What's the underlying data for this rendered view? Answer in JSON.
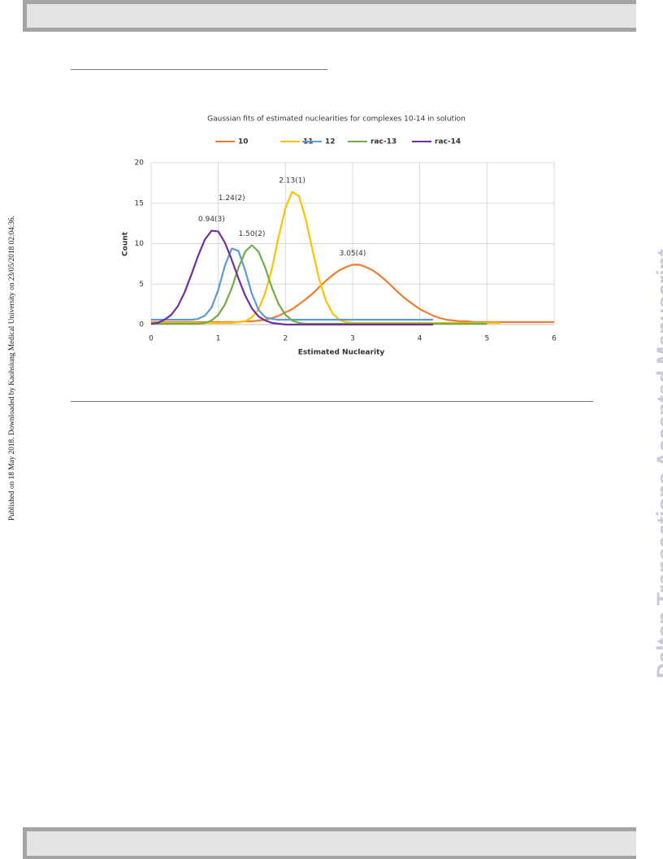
{
  "sidebar_text": "Published on 18 May 2018. Downloaded by Kaohsiung Medical University on 23/05/2018 02:04:36.",
  "watermark": "Dalton Transactions Accepted Manuscript",
  "chart_data": {
    "type": "line",
    "title": "Gaussian fits of estimated nuclearities for complexes 10-14 in solution",
    "x_label": "Estimated Nuclearity",
    "y_label": "Count",
    "xlim": [
      0,
      6
    ],
    "xticks": [
      0,
      1,
      2,
      3,
      4,
      5,
      6
    ],
    "ylim": [
      0,
      20
    ],
    "yticks": [
      0,
      5,
      10,
      15,
      20
    ],
    "grid": true,
    "legend": "top",
    "x": [
      0,
      0.1,
      0.2,
      0.3,
      0.4,
      0.5,
      0.6,
      0.7,
      0.8,
      0.9,
      1,
      1.1,
      1.2,
      1.3,
      1.4,
      1.5,
      1.6,
      1.7,
      1.8,
      1.9,
      2,
      2.1,
      2.2,
      2.3,
      2.4,
      2.5,
      2.6,
      2.7,
      2.8,
      2.9,
      3,
      3.1,
      3.2,
      3.3,
      3.4,
      3.5,
      3.6,
      3.7,
      3.8,
      3.9,
      4,
      4.1,
      4.2,
      4.3,
      4.4,
      4.5,
      4.6,
      4.7,
      4.8,
      4.9,
      5,
      5.1,
      5.2,
      5.3,
      5.4,
      5.5,
      5.6,
      5.7,
      5.8,
      5.9,
      6
    ],
    "series": [
      {
        "name": "10",
        "color": "#ed7d31",
        "peak_label": "3.05(4)",
        "values": [
          0.3,
          0.3,
          0.3,
          0.3,
          0.3,
          0.3,
          0.3,
          0.3,
          0.3,
          0.3,
          0.3,
          0.3,
          0.3,
          0.3,
          0.4,
          0.4,
          0.5,
          0.6,
          0.8,
          1.1,
          1.5,
          1.9,
          2.5,
          3.1,
          3.8,
          4.6,
          5.4,
          6.1,
          6.7,
          7.1,
          7.4,
          7.4,
          7.1,
          6.7,
          6.1,
          5.4,
          4.6,
          3.8,
          3.1,
          2.5,
          1.9,
          1.5,
          1.1,
          0.8,
          0.6,
          0.5,
          0.4,
          0.4,
          0.3,
          0.3,
          0.3,
          0.3,
          0.3,
          0.3,
          0.3,
          0.3,
          0.3,
          0.3,
          0.3,
          0.3,
          0.3
        ]
      },
      {
        "name": "11",
        "color": "#ffc000",
        "peak_label": "2.13(1)",
        "values": [
          0.2,
          0.2,
          0.2,
          0.2,
          0.2,
          0.2,
          0.2,
          0.2,
          0.2,
          0.2,
          0.2,
          0.2,
          0.2,
          0.3,
          0.4,
          0.9,
          1.9,
          3.9,
          7.0,
          10.9,
          14.4,
          16.4,
          15.9,
          13.1,
          9.3,
          5.7,
          3.0,
          1.4,
          0.6,
          0.3,
          0.2,
          0.2,
          0.2,
          0.2,
          0.2,
          0.2,
          0.2,
          0.2,
          0.2,
          0.2,
          0.2,
          0.2,
          0.2,
          0.2,
          0.2,
          0.2,
          0.2,
          0.2,
          0.2,
          0.2,
          0.2,
          0.2,
          0.2,
          null,
          null,
          null,
          null,
          null,
          null,
          null,
          null
        ]
      },
      {
        "name": "12",
        "color": "#5b9bd5",
        "peak_label": "1.24(2)",
        "values": [
          0.6,
          0.6,
          0.6,
          0.6,
          0.6,
          0.6,
          0.6,
          0.7,
          1.1,
          2.1,
          4.3,
          7.3,
          9.4,
          9.1,
          6.7,
          3.8,
          1.8,
          0.9,
          0.7,
          0.6,
          0.6,
          0.6,
          0.6,
          0.6,
          0.6,
          0.6,
          0.6,
          0.6,
          0.6,
          0.6,
          0.6,
          0.6,
          0.6,
          0.6,
          0.6,
          0.6,
          0.6,
          0.6,
          0.6,
          0.6,
          0.6,
          0.6,
          0.6,
          null,
          null,
          null,
          null,
          null,
          null,
          null,
          null,
          null,
          null,
          null,
          null,
          null,
          null,
          null,
          null,
          null,
          null
        ]
      },
      {
        "name": "rac-13",
        "color": "#70ad47",
        "peak_label": "1.50(2)",
        "values": [
          0.1,
          0.1,
          0.1,
          0.1,
          0.1,
          0.1,
          0.1,
          0.1,
          0.2,
          0.5,
          1.2,
          2.5,
          4.5,
          7.0,
          9.0,
          9.8,
          9.0,
          7.0,
          4.5,
          2.5,
          1.2,
          0.5,
          0.2,
          0.1,
          0.1,
          0.1,
          0.1,
          0.1,
          0.1,
          0.1,
          0.1,
          0.1,
          0.1,
          0.1,
          0.1,
          0.1,
          0.1,
          0.1,
          0.1,
          0.1,
          0.1,
          0.1,
          0.1,
          0.1,
          0.1,
          0.1,
          0.1,
          0.1,
          0.1,
          0.1,
          0.1,
          null,
          null,
          null,
          null,
          null,
          null,
          null,
          null,
          null,
          null
        ]
      },
      {
        "name": "rac-14",
        "color": "#7030a0",
        "peak_label": "0.94(3)",
        "values": [
          0.1,
          0.2,
          0.6,
          1.2,
          2.3,
          4.0,
          6.2,
          8.5,
          10.5,
          11.6,
          11.5,
          10.1,
          8.0,
          5.7,
          3.6,
          2.0,
          1.0,
          0.5,
          0.2,
          0.1,
          0,
          0,
          0,
          0,
          0,
          0,
          0,
          0,
          0,
          0,
          0,
          0,
          0,
          0,
          0,
          0,
          0,
          0,
          0,
          0,
          0,
          0,
          0,
          null,
          null,
          null,
          null,
          null,
          null,
          null,
          null,
          null,
          null,
          null,
          null,
          null,
          null,
          null,
          null,
          null,
          null
        ]
      }
    ]
  }
}
